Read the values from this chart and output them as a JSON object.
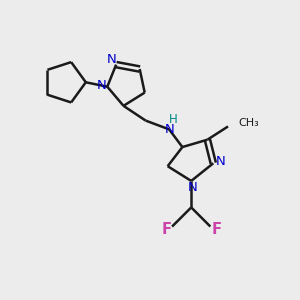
{
  "background_color": "#ececec",
  "bond_color": "#1a1a1a",
  "N_color": "#0000cc",
  "NH_color": "#008888",
  "F_color": "#cc44aa",
  "line_width": 1.8,
  "figsize": [
    3.0,
    3.0
  ],
  "dpi": 100,
  "xlim": [
    0,
    10
  ],
  "ylim": [
    0,
    10
  ]
}
